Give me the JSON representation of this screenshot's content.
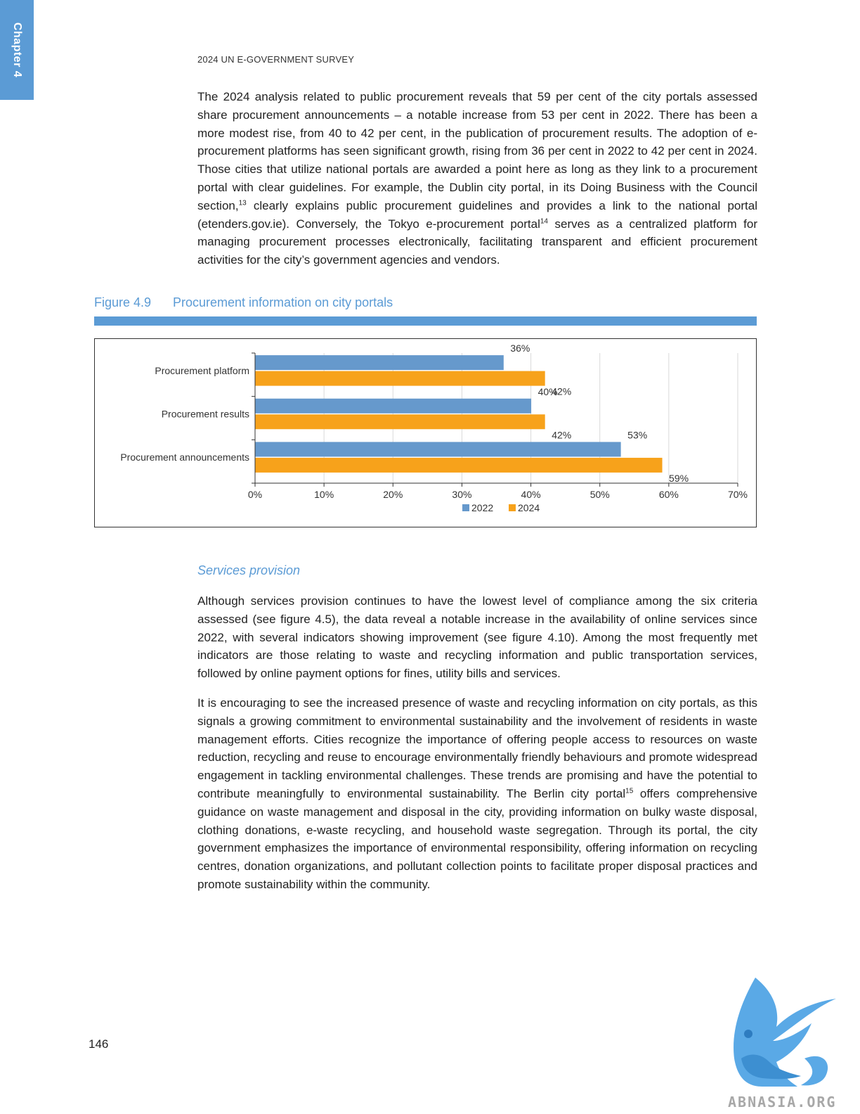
{
  "side_tab": {
    "label": "Chapter 4"
  },
  "header": {
    "running_head": "2024 UN E-GOVERNMENT SURVEY"
  },
  "paragraph1": {
    "t1": "The 2024 analysis related to public procurement reveals that 59 per cent of the city portals assessed share procurement announcements – a notable increase from 53 per cent in 2022. There has been a more modest rise, from 40 to 42 per cent, in the publication of procurement results. The adoption of e-procurement platforms has seen significant growth, rising from 36 per cent in 2022 to 42 per cent in 2024. Those cities that utilize national portals are awarded a point here as long as they link to a procurement portal with clear guidelines. For example, the Dublin city portal, in its Doing Business with the Council section,",
    "fn1": "13",
    "t2": " clearly explains public procurement guidelines and provides a link to the national portal (etenders.gov.ie). Conversely, the Tokyo e-procurement portal",
    "fn2": "14",
    "t3": " serves as a centralized platform for managing procurement processes electronically, facilitating transparent and efficient procurement activities for the city’s government agencies and vendors."
  },
  "figure": {
    "number": "Figure 4.9",
    "title": "Procurement information on city portals"
  },
  "chart_data": {
    "type": "bar",
    "orientation": "horizontal",
    "categories": [
      "Procurement platform",
      "Procurement results",
      "Procurement announcements"
    ],
    "series": [
      {
        "name": "2022",
        "values": [
          36,
          40,
          53
        ],
        "labels": [
          "36%",
          "40%",
          "53%"
        ],
        "color": "#6699cc"
      },
      {
        "name": "2024",
        "values": [
          42,
          42,
          59
        ],
        "labels": [
          "42%",
          "42%",
          "59%"
        ],
        "color": "#f7a21b"
      }
    ],
    "xlim": [
      0,
      70
    ],
    "xticks": [
      0,
      10,
      20,
      30,
      40,
      50,
      60,
      70
    ],
    "xtick_labels": [
      "0%",
      "10%",
      "20%",
      "30%",
      "40%",
      "50%",
      "60%",
      "70%"
    ],
    "grid": true,
    "legend": "bottom"
  },
  "section": {
    "subheading": "Services provision"
  },
  "paragraph2": {
    "text": "Although services provision continues to have the lowest level of compliance among the six criteria assessed (see figure 4.5), the data reveal a notable increase in the availability of online services since 2022, with several indicators showing improvement (see figure 4.10). Among the most frequently met indicators are those relating to waste and recycling information and public transportation services, followed by online payment options for fines, utility bills and services."
  },
  "paragraph3": {
    "t1": "It is encouraging to see the increased presence of waste and recycling information on city portals, as this signals a growing commitment to environmental sustainability and the involvement of residents in waste management efforts. Cities recognize the importance of offering people access to resources on waste reduction, recycling and reuse to encourage environmentally friendly behaviours and promote widespread engagement in tackling environmental challenges. These trends are promising and have the potential to contribute meaningfully to environmental sustainability. The Berlin city portal",
    "fn1": "15",
    "t2": " offers comprehensive guidance on waste management and disposal in the city, providing information on bulky waste disposal, clothing donations, e-waste recycling, and household waste segregation. Through its portal, the city government emphasizes the importance of environmental responsibility, offering information on recycling centres, donation organizations, and pollutant collection points to facilitate proper disposal practices and promote sustainability within the community."
  },
  "footer": {
    "page_number": "146"
  },
  "watermark": {
    "text": "ABNASIA.ORG",
    "icon": "griffin-logo-icon"
  }
}
